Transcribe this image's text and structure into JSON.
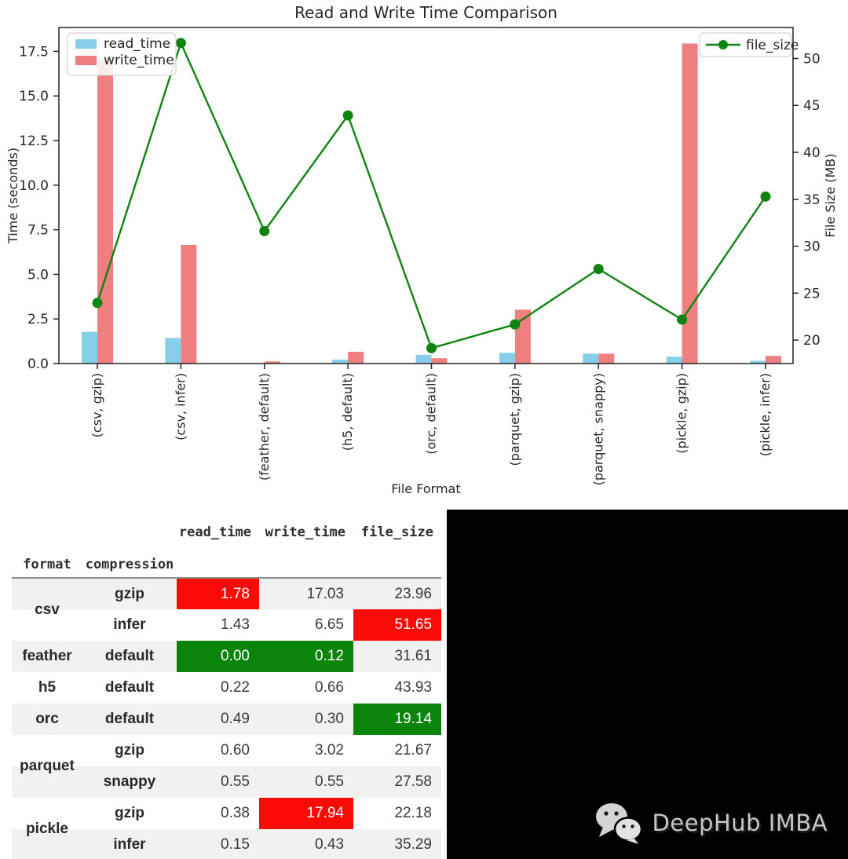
{
  "chart_data": {
    "type": "bar",
    "title": "Read and Write Time Comparison",
    "xlabel": "File Format",
    "categories": [
      "(csv, gzip)",
      "(csv, infer)",
      "(feather, default)",
      "(h5, default)",
      "(orc, default)",
      "(parquet, gzip)",
      "(parquet, snappy)",
      "(pickle, gzip)",
      "(pickle, infer)"
    ],
    "series": [
      {
        "name": "read_time",
        "type": "bar",
        "axis": "left",
        "color": "#87ceeb",
        "values": [
          1.78,
          1.43,
          0.0,
          0.22,
          0.49,
          0.6,
          0.55,
          0.38,
          0.15
        ]
      },
      {
        "name": "write_time",
        "type": "bar",
        "axis": "left",
        "color": "#f08080",
        "values": [
          17.03,
          6.65,
          0.12,
          0.66,
          0.3,
          3.02,
          0.55,
          17.94,
          0.43
        ]
      },
      {
        "name": "file_size",
        "type": "line",
        "axis": "right",
        "color": "#108410",
        "values": [
          23.96,
          51.65,
          31.61,
          43.93,
          19.14,
          21.67,
          27.58,
          22.18,
          35.29
        ]
      }
    ],
    "left_axis": {
      "label": "Time (seconds)",
      "min": 0,
      "max": 18.84,
      "ticks": [
        "0.0",
        "2.5",
        "5.0",
        "7.5",
        "10.0",
        "12.5",
        "15.0",
        "17.5"
      ]
    },
    "right_axis": {
      "label": "File Size (MB)",
      "min": 17.5,
      "max": 53.3,
      "ticks": [
        "20",
        "25",
        "30",
        "35",
        "40",
        "45",
        "50"
      ]
    },
    "legend_left": [
      "read_time",
      "write_time"
    ],
    "legend_right": [
      "file_size"
    ],
    "grid": false,
    "frame_color": "#262626"
  },
  "table": {
    "columns": [
      "read_time",
      "write_time",
      "file_size"
    ],
    "index_names": [
      "format",
      "compression"
    ],
    "rows": [
      {
        "format": "csv",
        "rowspan": 2,
        "span_style": "gw",
        "compression": "gzip",
        "values": [
          "1.78",
          "17.03",
          "23.96"
        ],
        "hl": [
          "red",
          null,
          null
        ]
      },
      {
        "compression": "infer",
        "values": [
          "1.43",
          "6.65",
          "51.65"
        ],
        "hl": [
          null,
          null,
          "red"
        ]
      },
      {
        "format": "feather",
        "rowspan": 1,
        "compression": "default",
        "values": [
          "0.00",
          "0.12",
          "31.61"
        ],
        "hl": [
          "green",
          "green",
          null
        ]
      },
      {
        "format": "h5",
        "rowspan": 1,
        "compression": "default",
        "values": [
          "0.22",
          "0.66",
          "43.93"
        ],
        "hl": [
          null,
          null,
          null
        ]
      },
      {
        "format": "orc",
        "rowspan": 1,
        "compression": "default",
        "values": [
          "0.49",
          "0.30",
          "19.14"
        ],
        "hl": [
          null,
          null,
          "green"
        ]
      },
      {
        "format": "parquet",
        "rowspan": 2,
        "span_style": "wg",
        "compression": "gzip",
        "values": [
          "0.60",
          "3.02",
          "21.67"
        ],
        "hl": [
          null,
          null,
          null
        ]
      },
      {
        "compression": "snappy",
        "values": [
          "0.55",
          "0.55",
          "27.58"
        ],
        "hl": [
          null,
          null,
          null
        ]
      },
      {
        "format": "pickle",
        "rowspan": 2,
        "span_style": "wg",
        "compression": "gzip",
        "values": [
          "0.38",
          "17.94",
          "22.18"
        ],
        "hl": [
          null,
          "red",
          null
        ]
      },
      {
        "compression": "infer",
        "values": [
          "0.15",
          "0.43",
          "35.29"
        ],
        "hl": [
          null,
          null,
          null
        ]
      }
    ],
    "highlight_colors": {
      "red": "#fb0b08",
      "green": "#0b840b"
    },
    "stripe_color": "#f1f1f1"
  },
  "watermark": {
    "brand": "DeepHub IMBA"
  }
}
